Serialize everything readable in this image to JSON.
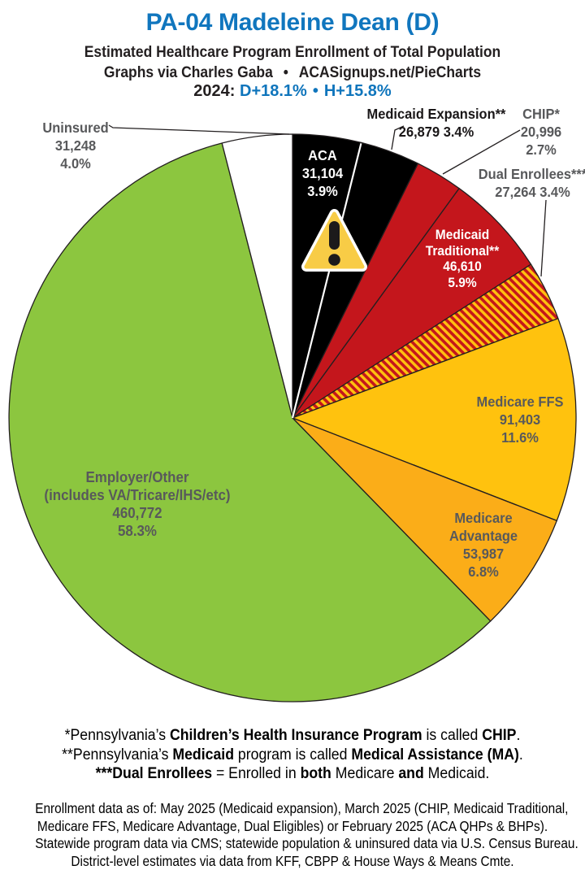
{
  "header": {
    "title": "PA-04 Madeleine Dean (D)",
    "subtitle": "Estimated Healthcare Program Enrollment of Total Population",
    "credit_left": "Graphs via Charles Gaba",
    "credit_bullet": "•",
    "credit_right": "ACASignups.net/PieCharts",
    "year_label": "2024:",
    "dem_margin": "D+18.1%",
    "margin_bullet": "•",
    "harris_margin": "H+15.8%",
    "colors": {
      "title_blue": "#1076BE",
      "margin_blue": "#0F75BC",
      "text_dark": "#231F20"
    }
  },
  "chart_data": {
    "type": "pie",
    "title": "Estimated Healthcare Program Enrollment of Total Population",
    "start_angle_deg": 0,
    "direction": "clockwise",
    "legend_position": "labels-on-and-around-slices",
    "slices": [
      {
        "name": "ACA",
        "value": 31104,
        "value_label": "31,104",
        "percent": 3.9,
        "pct_label": "3.9%",
        "color": "#000000",
        "label_color": "#FFFFFF",
        "divider_after_color": "#FFFFFF"
      },
      {
        "name": "Medicaid Expansion**",
        "value": 26879,
        "value_label": "26,879",
        "percent": 3.4,
        "pct_label": "3.4%",
        "color": "#000000",
        "label_color": "#1a1718"
      },
      {
        "name": "CHIP*",
        "value": 20996,
        "value_label": "20,996",
        "percent": 2.7,
        "pct_label": "2.7%",
        "color": "#C4161C",
        "label_color": "#58595B"
      },
      {
        "name": "Medicaid Traditional**",
        "value": 46610,
        "value_label": "46,610",
        "percent": 5.9,
        "pct_label": "5.9%",
        "color": "#C4161C",
        "label_color": "#FFFFFF"
      },
      {
        "name": "Dual Enrollees***",
        "value": 27264,
        "value_label": "27,264",
        "percent": 3.4,
        "pct_label": "3.4%",
        "color": "hatch",
        "label_color": "#58595B"
      },
      {
        "name": "Medicare FFS",
        "value": 91403,
        "value_label": "91,403",
        "percent": 11.6,
        "pct_label": "11.6%",
        "color": "#FFC20E",
        "label_color": "#58595B"
      },
      {
        "name": "Medicare Advantage",
        "value": 53987,
        "value_label": "53,987",
        "percent": 6.8,
        "pct_label": "6.8%",
        "color": "#FBAD18",
        "label_color": "#58595B"
      },
      {
        "name": "Employer/Other",
        "name2": "(includes VA/Tricare/IHS/etc)",
        "value": 460772,
        "value_label": "460,772",
        "percent": 58.3,
        "pct_label": "58.3%",
        "color": "#8CC63F",
        "label_color": "#58595B"
      },
      {
        "name": "Uninsured",
        "value": 31248,
        "value_label": "31,248",
        "percent": 4.0,
        "pct_label": "4.0%",
        "color": "#FFFFFF",
        "label_color": "#58595B"
      }
    ],
    "hatch_colors": {
      "base": "#C4161C",
      "stripe": "#FFC20E"
    },
    "outline_color": "#231F20"
  },
  "footnotes": {
    "lines": [
      {
        "segments": [
          {
            "t": "*Pennsylvania’s ",
            "b": false
          },
          {
            "t": "Children’s Health Insurance Program",
            "b": true
          },
          {
            "t": " is called ",
            "b": false
          },
          {
            "t": "CHIP",
            "b": true
          },
          {
            "t": ".",
            "b": false
          }
        ]
      },
      {
        "segments": [
          {
            "t": "**Pennsylvania’s ",
            "b": false
          },
          {
            "t": "Medicaid",
            "b": true
          },
          {
            "t": " program is called ",
            "b": false
          },
          {
            "t": "Medical Assistance (MA)",
            "b": true
          },
          {
            "t": ".",
            "b": false
          }
        ]
      },
      {
        "segments": [
          {
            "t": "***Dual Enrollees",
            "b": true
          },
          {
            "t": " = Enrolled in ",
            "b": false
          },
          {
            "t": "both",
            "b": true
          },
          {
            "t": " Medicare ",
            "b": false
          },
          {
            "t": "and",
            "b": true
          },
          {
            "t": " Medicaid.",
            "b": false
          }
        ]
      }
    ]
  },
  "sources": {
    "lines": [
      "Enrollment data as of: May 2025 (Medicaid expansion), March 2025 (CHIP, Medicaid Traditional,",
      "Medicare FFS, Medicare Advantage, Dual Eligibles) or February 2025 (ACA QHPs & BHPs).",
      "Statewide program data via CMS; statewide population & uninsured data via U.S. Census Bureau.",
      "District-level estimates via data from KFF, CBPP & House Ways & Means Cmte."
    ]
  }
}
